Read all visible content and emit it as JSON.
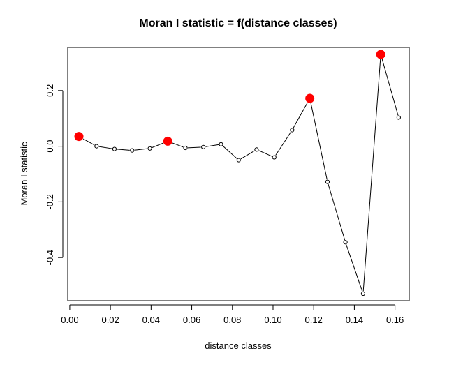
{
  "chart_data": {
    "type": "line",
    "title": "Moran I statistic = f(distance classes)",
    "xlabel": "distance classes",
    "ylabel": "Moran I statistic",
    "xlim": [
      -0.001,
      0.167
    ],
    "ylim": [
      -0.555,
      0.355
    ],
    "x_ticks": [
      0.0,
      0.02,
      0.04,
      0.06,
      0.08,
      0.1,
      0.12,
      0.14,
      0.16
    ],
    "x_tick_labels": [
      "0.00",
      "0.02",
      "0.04",
      "0.06",
      "0.08",
      "0.10",
      "0.12",
      "0.14",
      "0.16"
    ],
    "y_ticks": [
      -0.4,
      -0.2,
      0.0,
      0.2
    ],
    "y_tick_labels": [
      "-0.4",
      "-0.2",
      "0.0",
      "0.2"
    ],
    "grid": false,
    "colors": {
      "significant": "#ff0000",
      "line": "#000000"
    },
    "series": [
      {
        "x": [
          0.0045,
          0.0132,
          0.022,
          0.0307,
          0.0394,
          0.0482,
          0.0569,
          0.0657,
          0.0744,
          0.0831,
          0.0919,
          0.1006,
          0.1094,
          0.1181,
          0.1268,
          0.1356,
          0.1443,
          0.153,
          0.1618
        ],
        "y": [
          0.035,
          0.0,
          -0.01,
          -0.015,
          -0.008,
          0.018,
          -0.006,
          -0.003,
          0.007,
          -0.05,
          -0.012,
          -0.04,
          0.058,
          0.172,
          -0.128,
          -0.345,
          -0.53,
          0.33,
          0.103
        ],
        "significant": [
          true,
          false,
          false,
          false,
          false,
          true,
          false,
          false,
          false,
          false,
          false,
          false,
          false,
          true,
          false,
          false,
          false,
          true,
          false
        ]
      }
    ]
  }
}
